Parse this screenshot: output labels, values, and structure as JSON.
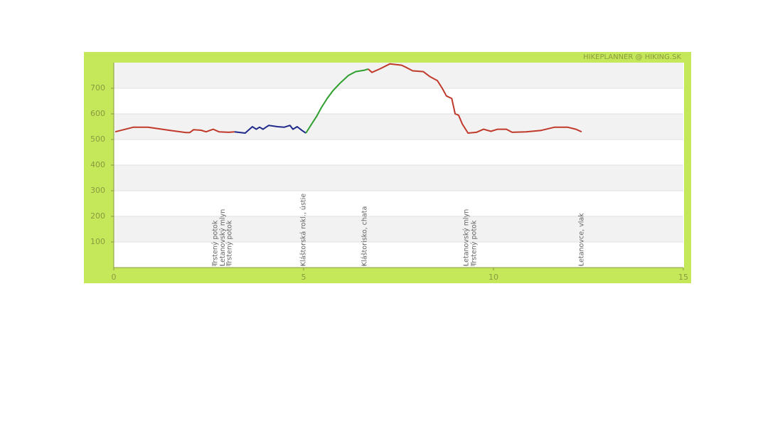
{
  "chart_data": {
    "type": "line",
    "watermark": "HIKEPLANNER @ HIKING.SK",
    "xlim": [
      0,
      15
    ],
    "xticks": [
      0,
      5,
      10,
      15
    ],
    "ylim": [
      0,
      800
    ],
    "yticks": [
      100,
      200,
      300,
      400,
      500,
      600,
      700
    ],
    "grid": true,
    "series": [
      {
        "color": "#c0392b",
        "x": [
          0.04,
          0.52,
          0.9,
          1.5,
          1.9,
          2.0,
          2.1,
          2.3,
          2.43,
          2.62,
          2.77,
          3.03,
          3.18
        ],
        "values": [
          530,
          548,
          548,
          535,
          527,
          527,
          538,
          536,
          530,
          540,
          530,
          528,
          530
        ]
      },
      {
        "color": "#1f2a8a",
        "x": [
          3.18,
          3.46,
          3.65,
          3.75,
          3.84,
          3.93,
          4.08,
          4.31,
          4.49,
          4.64,
          4.72,
          4.83,
          4.96,
          5.06
        ],
        "values": [
          530,
          525,
          550,
          540,
          548,
          540,
          555,
          550,
          548,
          555,
          540,
          550,
          535,
          525
        ]
      },
      {
        "color": "#2e9e2e",
        "x": [
          5.06,
          5.21,
          5.34,
          5.47,
          5.62,
          5.77,
          5.96,
          6.18,
          6.37,
          6.59,
          6.7
        ],
        "values": [
          525,
          560,
          590,
          625,
          660,
          690,
          720,
          750,
          765,
          770,
          775
        ]
      },
      {
        "color": "#c0392b",
        "x": [
          6.7,
          6.8,
          7.0,
          7.27,
          7.58,
          7.72,
          7.87,
          8.15,
          8.33,
          8.52,
          8.65,
          8.76,
          8.9,
          8.99,
          9.08,
          9.18,
          9.33,
          9.55,
          9.74,
          9.93,
          10.11,
          10.34,
          10.49,
          10.86,
          11.24,
          11.61,
          11.95,
          12.17,
          12.32
        ],
        "values": [
          775,
          762,
          775,
          795,
          790,
          780,
          768,
          765,
          745,
          730,
          700,
          670,
          660,
          600,
          595,
          560,
          525,
          528,
          540,
          532,
          540,
          540,
          528,
          530,
          535,
          548,
          548,
          540,
          530
        ]
      }
    ],
    "annotations": [
      {
        "x": 2.68,
        "text": "Trstený potok"
      },
      {
        "x": 2.87,
        "text": "Letanovský mlyn"
      },
      {
        "x": 3.05,
        "text": "Trstený potok"
      },
      {
        "x": 5.0,
        "text": "Kláštorská rokl., ústie"
      },
      {
        "x": 6.61,
        "text": "Kláštorisko, chata"
      },
      {
        "x": 9.29,
        "text": "Letanovský mlyn"
      },
      {
        "x": 9.49,
        "text": "Trstený potok"
      },
      {
        "x": 12.32,
        "text": "Letanovce, vlak"
      }
    ]
  }
}
